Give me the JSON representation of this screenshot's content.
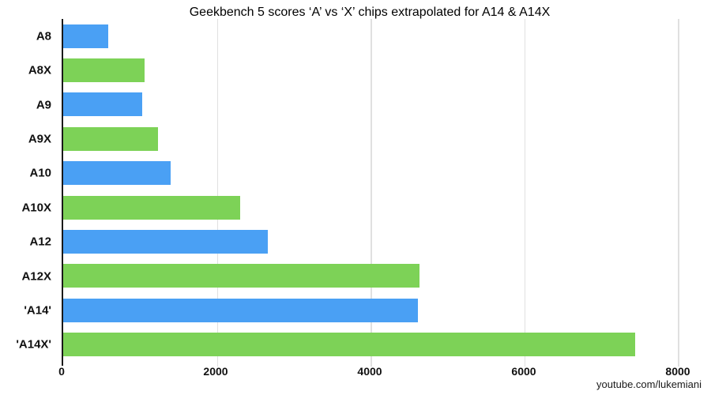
{
  "chart_data": {
    "type": "bar",
    "orientation": "horizontal",
    "title": "Geekbench 5 scores ‘A’ vs ‘X’ chips extrapolated for A14 & A14X",
    "categories": [
      "A8",
      "A8X",
      "A9",
      "A9X",
      "A10",
      "A10X",
      "A12",
      "A12X",
      "'A14'",
      "'A14X'"
    ],
    "values": [
      585,
      1055,
      1025,
      1230,
      1395,
      2300,
      2665,
      4635,
      4615,
      7445
    ],
    "series_of_bar": [
      "A",
      "X",
      "A",
      "X",
      "A",
      "X",
      "A",
      "X",
      "A",
      "X"
    ],
    "bar_colors": [
      "#4aa0f4",
      "#7dd257",
      "#4aa0f4",
      "#7dd257",
      "#4aa0f4",
      "#7dd257",
      "#4aa0f4",
      "#7dd257",
      "#4aa0f4",
      "#7dd257"
    ],
    "xlabel": "",
    "ylabel": "",
    "xlim": [
      0,
      8000
    ],
    "x_ticks": [
      0,
      2000,
      4000,
      6000,
      8000
    ],
    "grid": "vertical-only",
    "legend": "none"
  },
  "colors": {
    "a_chip_bar": "#4aa0f4",
    "x_chip_bar": "#7dd257",
    "gridline": "#e0e0e0",
    "axis_line": "#1a1a1a",
    "background": "#ffffff"
  },
  "credit": "youtube.com/lukemiani"
}
